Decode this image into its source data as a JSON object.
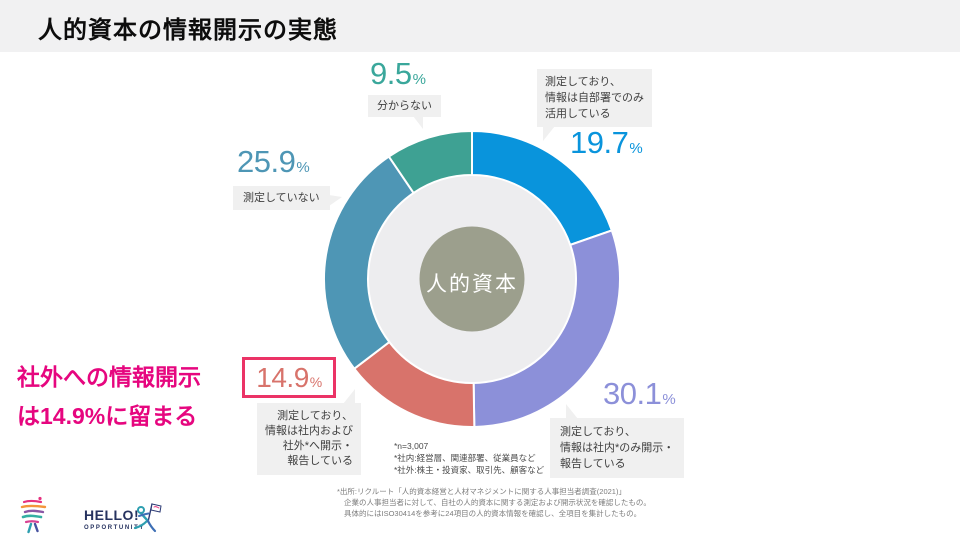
{
  "title": "人的資本の情報開示の実態",
  "highlight": {
    "line1": "社外への情報開示",
    "line2": "は14.9%に留まる"
  },
  "chart_data": {
    "type": "pie",
    "variant": "donut",
    "center_label": "人的資本",
    "start_angle_deg": 0,
    "direction": "clockwise",
    "center_color": "#9C9F8D",
    "inner_ring_color": "#EDEDEF",
    "segments": [
      {
        "label": "測定しており、情報は自部署でのみ活用している",
        "value": 19.7,
        "color": "#0994DC",
        "highlighted": false
      },
      {
        "label": "測定しており、情報は社内*のみ開示・報告している",
        "value": 30.1,
        "color": "#8C90D9",
        "highlighted": false
      },
      {
        "label": "測定しており、情報は社内および社外*へ開示・報告している",
        "value": 14.9,
        "color": "#D8736B",
        "highlighted": true
      },
      {
        "label": "測定していない",
        "value": 25.9,
        "color": "#4E96B5",
        "highlighted": false
      },
      {
        "label": "分からない",
        "value": 9.5,
        "color": "#3EA193",
        "highlighted": false
      }
    ]
  },
  "callouts": {
    "dept": {
      "value": "19.7",
      "unit": "%",
      "color": "#0994DC",
      "lines": [
        "測定しており、",
        "情報は自部署でのみ",
        "活用している"
      ]
    },
    "internal": {
      "value": "30.1",
      "unit": "%",
      "color": "#8C90D9",
      "lines": [
        "測定しており、",
        "情報は社内*のみ開示・",
        "報告している"
      ]
    },
    "external": {
      "value": "14.9",
      "unit": "%",
      "color": "#D8736B",
      "box_border": "#EB3366",
      "lines": [
        "測定しており、",
        "情報は社内および",
        "社外*へ開示・",
        "報告している"
      ]
    },
    "not_measured": {
      "value": "25.9",
      "unit": "%",
      "color": "#4E96B5",
      "label": "測定していない"
    },
    "unknown": {
      "value": "9.5",
      "unit": "%",
      "color": "#3AA79B",
      "label": "分からない"
    }
  },
  "notes": {
    "n": "*n=3,007",
    "internal_def": "*社内:経営層、関連部署、従業員など",
    "external_def": "*社外:株主・投資家、取引先、顧客など"
  },
  "source": {
    "line1": "*出所:リクルート「人的資本経営と人材マネジメントに関する人事担当者調査(2021)」",
    "line2": "企業の人事担当者に対して、自社の人的資本に関する測定および開示状況を確認したもの。",
    "line3": "具体的にはISO30414を参考に24項目の人的資本情報を確認し、全項目を集計したもの。"
  },
  "logo": {
    "title": "HELLO!",
    "subtitle": "OPPORTUNITY"
  }
}
